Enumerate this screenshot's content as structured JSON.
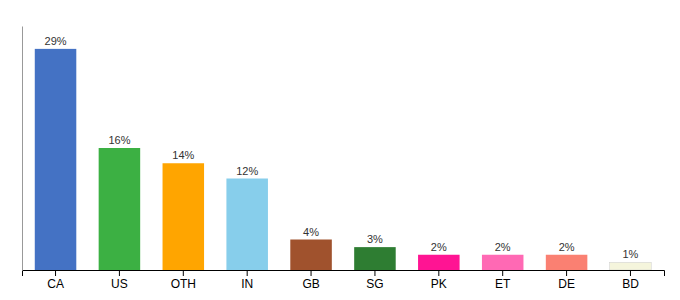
{
  "chart_data": {
    "type": "bar",
    "categories": [
      "CA",
      "US",
      "OTH",
      "IN",
      "GB",
      "SG",
      "PK",
      "ET",
      "DE",
      "BD"
    ],
    "values": [
      29,
      16,
      14,
      12,
      4,
      3,
      2,
      2,
      2,
      1
    ],
    "value_labels": [
      "29%",
      "16%",
      "14%",
      "12%",
      "4%",
      "3%",
      "2%",
      "2%",
      "2%",
      "1%"
    ],
    "colors": [
      "#4472C4",
      "#3CB043",
      "#FFA500",
      "#87CEEB",
      "#A0522D",
      "#2E7D32",
      "#FF1493",
      "#FF69B4",
      "#FA8072",
      "#F5F5DC"
    ],
    "ylim": [
      0,
      32
    ],
    "data_labels": true,
    "tick_labels": "x"
  }
}
